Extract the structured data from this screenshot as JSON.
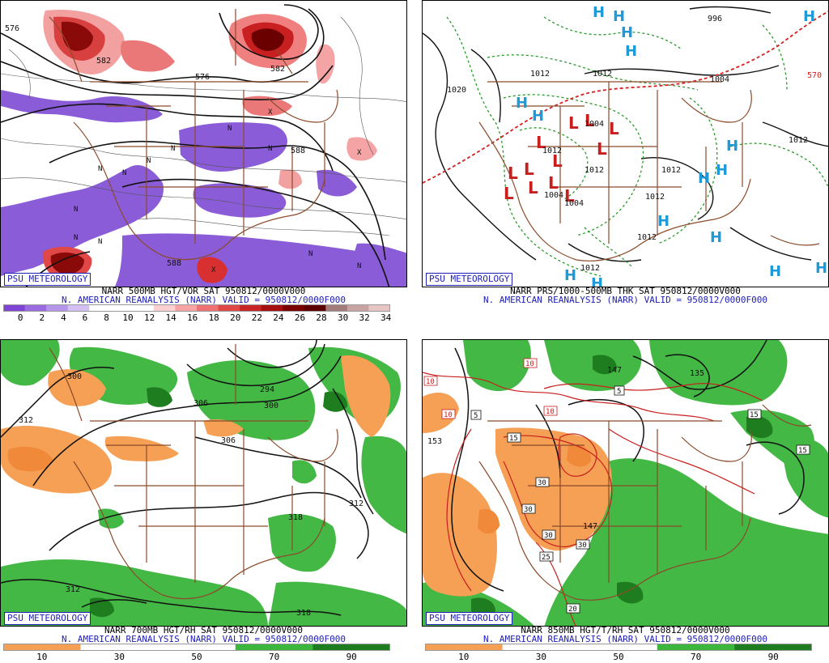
{
  "branding": "PSU METEOROLOGY",
  "panels": [
    {
      "title": "NARR 500MB HGT/VOR SAT 950812/0000V000",
      "subtitle": "N. AMERICAN REANALYSIS (NARR) VALID = 950812/0000F000",
      "colorbar": {
        "ticks": [
          "0",
          "2",
          "4",
          "6",
          "8",
          "10",
          "12",
          "14",
          "16",
          "18",
          "20",
          "22",
          "24",
          "26",
          "28",
          "30",
          "32",
          "34"
        ],
        "colors": [
          "#7f43d6",
          "#9a6ae0",
          "#b595ea",
          "#d2c0f3",
          "#ffffff",
          "#ffffff",
          "#ffffff",
          "#fcd0d0",
          "#f7a3a3",
          "#ef7272",
          "#e04848",
          "#c82626",
          "#a50f0f",
          "#7a0000",
          "#5c0000",
          "#a37b7b",
          "#c9a3a3",
          "#e8c5c5"
        ]
      },
      "contour_labels": [
        "576",
        "582",
        "576",
        "582",
        "588",
        "588",
        "N",
        "N",
        "N",
        "X"
      ]
    },
    {
      "title": "NARR PRS/1000-500MB THK SAT 950812/0000V000",
      "subtitle": "N. AMERICAN REANALYSIS (NARR) VALID = 950812/0000F000",
      "contour_labels": [
        "1020",
        "1012",
        "1012",
        "1012",
        "1004",
        "1004",
        "1012",
        "1004",
        "1012",
        "1012",
        "1004",
        "1012",
        "1012",
        "1012",
        "996",
        "570"
      ],
      "high_marker": "H",
      "low_marker": "L"
    },
    {
      "title": "NARR 700MB HGT/RH SAT 950812/0000V000",
      "subtitle": "N. AMERICAN REANALYSIS (NARR) VALID = 950812/0000F000",
      "colorbar": {
        "ticks": [
          "10",
          "30",
          "50",
          "70",
          "90"
        ],
        "colors": [
          "#f5a055",
          "#ffffff",
          "#ffffff",
          "#3cb63c",
          "#1e7d1e"
        ]
      },
      "contour_labels": [
        "300",
        "312",
        "306",
        "294",
        "300",
        "312",
        "318",
        "312",
        "318",
        "306"
      ]
    },
    {
      "title": "NARR 850MB HGT/T/RH SAT 950812/0000V000",
      "subtitle": "N. AMERICAN REANALYSIS (NARR) VALID = 950812/0000F000",
      "colorbar": {
        "ticks": [
          "10",
          "30",
          "50",
          "70",
          "90"
        ],
        "colors": [
          "#f5a055",
          "#ffffff",
          "#ffffff",
          "#3cb63c",
          "#1e7d1e"
        ]
      },
      "contour_labels": [
        "10",
        "10",
        "10",
        "10",
        "153",
        "147",
        "135",
        "15",
        "15",
        "15",
        "5",
        "5",
        "30",
        "30",
        "30",
        "30",
        "147",
        "25",
        "20"
      ]
    }
  ]
}
